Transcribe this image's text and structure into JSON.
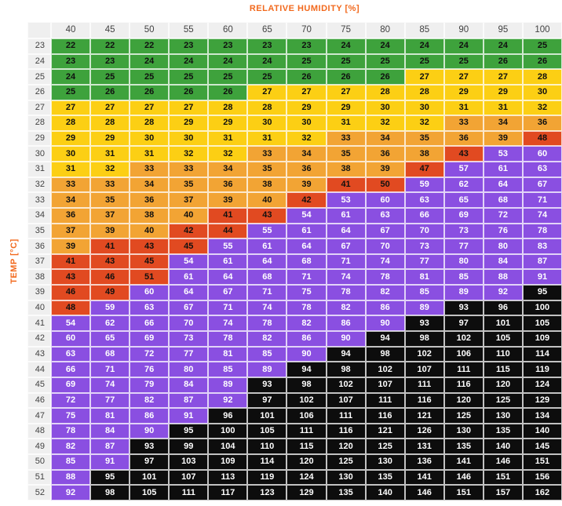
{
  "title": "RELATIVE HUMIDITY [%]",
  "y_axis_title": "TEMP [°C]",
  "colors": {
    "accent_orange": "#F2691D",
    "header_bg": "#EFEFEF",
    "header_text": "#424242",
    "page_bg": "#FFFFFF",
    "green": "#3EA23C",
    "yellow": "#FCCF14",
    "orange": "#F2A434",
    "red": "#E14A21",
    "purple": "#8A4FE1",
    "black": "#0D0D0D"
  },
  "chart_data": {
    "type": "heatmap",
    "title": "RELATIVE HUMIDITY [%]",
    "xlabel": "RELATIVE HUMIDITY [%]",
    "ylabel": "TEMP [°C]",
    "columns": [
      40,
      45,
      50,
      55,
      60,
      65,
      70,
      75,
      80,
      85,
      90,
      95,
      100
    ],
    "row_temps": [
      23,
      24,
      25,
      26,
      27,
      28,
      29,
      30,
      31,
      32,
      33,
      34,
      35,
      36,
      37,
      38,
      39,
      40,
      41,
      42,
      43,
      44,
      45,
      46,
      47,
      48,
      49,
      50,
      51,
      52
    ],
    "values": [
      [
        22,
        22,
        22,
        23,
        23,
        23,
        23,
        24,
        24,
        24,
        24,
        24,
        25
      ],
      [
        23,
        23,
        24,
        24,
        24,
        24,
        25,
        25,
        25,
        25,
        25,
        26,
        26
      ],
      [
        24,
        25,
        25,
        25,
        25,
        25,
        26,
        26,
        26,
        27,
        27,
        27,
        28
      ],
      [
        25,
        26,
        26,
        26,
        26,
        27,
        27,
        27,
        28,
        28,
        29,
        29,
        30
      ],
      [
        27,
        27,
        27,
        27,
        28,
        28,
        29,
        29,
        30,
        30,
        31,
        31,
        32
      ],
      [
        28,
        28,
        28,
        29,
        29,
        30,
        30,
        31,
        32,
        32,
        33,
        34,
        36
      ],
      [
        29,
        29,
        30,
        30,
        31,
        31,
        32,
        33,
        34,
        35,
        36,
        39,
        48
      ],
      [
        30,
        31,
        31,
        32,
        32,
        33,
        34,
        35,
        36,
        38,
        43,
        53,
        60
      ],
      [
        31,
        32,
        33,
        33,
        34,
        35,
        36,
        38,
        39,
        47,
        57,
        61,
        63
      ],
      [
        33,
        33,
        34,
        35,
        36,
        38,
        39,
        41,
        50,
        59,
        62,
        64,
        67
      ],
      [
        34,
        35,
        36,
        37,
        39,
        40,
        42,
        53,
        60,
        63,
        65,
        68,
        71
      ],
      [
        36,
        37,
        38,
        40,
        41,
        43,
        54,
        61,
        63,
        66,
        69,
        72,
        74
      ],
      [
        37,
        39,
        40,
        42,
        44,
        55,
        61,
        64,
        67,
        70,
        73,
        76,
        78
      ],
      [
        39,
        41,
        43,
        45,
        55,
        61,
        64,
        67,
        70,
        73,
        77,
        80,
        83
      ],
      [
        41,
        43,
        45,
        54,
        61,
        64,
        68,
        71,
        74,
        77,
        80,
        84,
        87
      ],
      [
        43,
        46,
        51,
        61,
        64,
        68,
        71,
        74,
        78,
        81,
        85,
        88,
        91
      ],
      [
        46,
        49,
        60,
        64,
        67,
        71,
        75,
        78,
        82,
        85,
        89,
        92,
        95
      ],
      [
        48,
        59,
        63,
        67,
        71,
        74,
        78,
        82,
        86,
        89,
        93,
        96,
        100
      ],
      [
        54,
        62,
        66,
        70,
        74,
        78,
        82,
        86,
        90,
        93,
        97,
        101,
        105
      ],
      [
        60,
        65,
        69,
        73,
        78,
        82,
        86,
        90,
        94,
        98,
        102,
        105,
        109
      ],
      [
        63,
        68,
        72,
        77,
        81,
        85,
        90,
        94,
        98,
        102,
        106,
        110,
        114
      ],
      [
        66,
        71,
        76,
        80,
        85,
        89,
        94,
        98,
        102,
        107,
        111,
        115,
        119
      ],
      [
        69,
        74,
        79,
        84,
        89,
        93,
        98,
        102,
        107,
        111,
        116,
        120,
        124
      ],
      [
        72,
        77,
        82,
        87,
        92,
        97,
        102,
        107,
        111,
        116,
        120,
        125,
        129
      ],
      [
        75,
        81,
        86,
        91,
        96,
        101,
        106,
        111,
        116,
        121,
        125,
        130,
        134
      ],
      [
        78,
        84,
        90,
        95,
        100,
        105,
        111,
        116,
        121,
        126,
        130,
        135,
        140
      ],
      [
        82,
        87,
        93,
        99,
        104,
        110,
        115,
        120,
        125,
        131,
        135,
        140,
        145
      ],
      [
        85,
        91,
        97,
        103,
        109,
        114,
        120,
        125,
        130,
        136,
        141,
        146,
        151
      ],
      [
        88,
        95,
        101,
        107,
        113,
        119,
        124,
        130,
        135,
        141,
        146,
        151,
        156
      ],
      [
        92,
        98,
        105,
        111,
        117,
        123,
        129,
        135,
        140,
        146,
        151,
        157,
        162
      ]
    ],
    "color_scale": [
      {
        "max": 26,
        "color": "#3EA23C",
        "text": "#101010"
      },
      {
        "max": 32,
        "color": "#FCCF14",
        "text": "#101010"
      },
      {
        "max": 40,
        "color": "#F2A434",
        "text": "#101010"
      },
      {
        "max": 52,
        "color": "#E14A21",
        "text": "#101010"
      },
      {
        "max": 92,
        "color": "#8A4FE1",
        "text": "#FFFFFF"
      },
      {
        "max": 999,
        "color": "#0D0D0D",
        "text": "#FFFFFF"
      }
    ],
    "legend_position": "none",
    "grid": true
  }
}
